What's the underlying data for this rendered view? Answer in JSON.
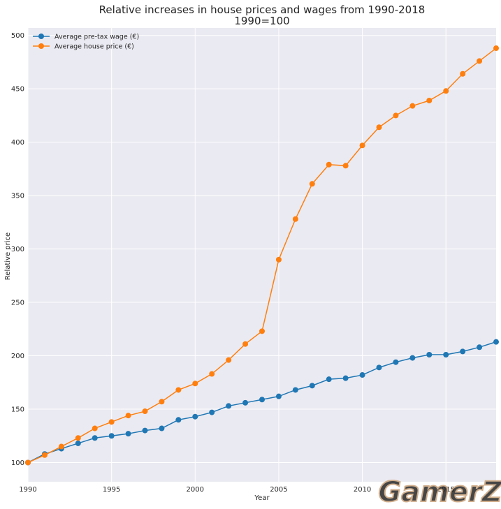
{
  "chart_data": {
    "type": "line",
    "title": "Relative increases in house prices and wages from 1990-2018",
    "subtitle": "1990=100",
    "xlabel": "Year",
    "ylabel": "Relative price",
    "xlim": [
      1990,
      2018
    ],
    "ylim": [
      82,
      507
    ],
    "x_ticks": [
      1990,
      1995,
      2000,
      2005,
      2010,
      2015
    ],
    "y_ticks": [
      100,
      150,
      200,
      250,
      300,
      350,
      400,
      450,
      500
    ],
    "grid": true,
    "legend_position": "top-left",
    "x": [
      1990,
      1991,
      1992,
      1993,
      1994,
      1995,
      1996,
      1997,
      1998,
      1999,
      2000,
      2001,
      2002,
      2003,
      2004,
      2005,
      2006,
      2007,
      2008,
      2009,
      2010,
      2011,
      2012,
      2013,
      2014,
      2015,
      2016,
      2017,
      2018
    ],
    "series": [
      {
        "name": "Average pre-tax wage (€)",
        "color": "#1f77b4",
        "values": [
          100,
          108,
          113,
          118,
          123,
          125,
          127,
          130,
          132,
          140,
          143,
          147,
          153,
          156,
          159,
          162,
          168,
          172,
          178,
          179,
          182,
          189,
          194,
          198,
          201,
          201,
          204,
          208,
          213
        ]
      },
      {
        "name": "Average house price (€)",
        "color": "#ff7f0e",
        "values": [
          100,
          107,
          115,
          123,
          132,
          138,
          144,
          148,
          157,
          168,
          174,
          183,
          196,
          211,
          223,
          290,
          328,
          361,
          379,
          378,
          397,
          414,
          425,
          434,
          439,
          448,
          464,
          476,
          488
        ]
      }
    ]
  },
  "watermark_text": "GamerZ"
}
